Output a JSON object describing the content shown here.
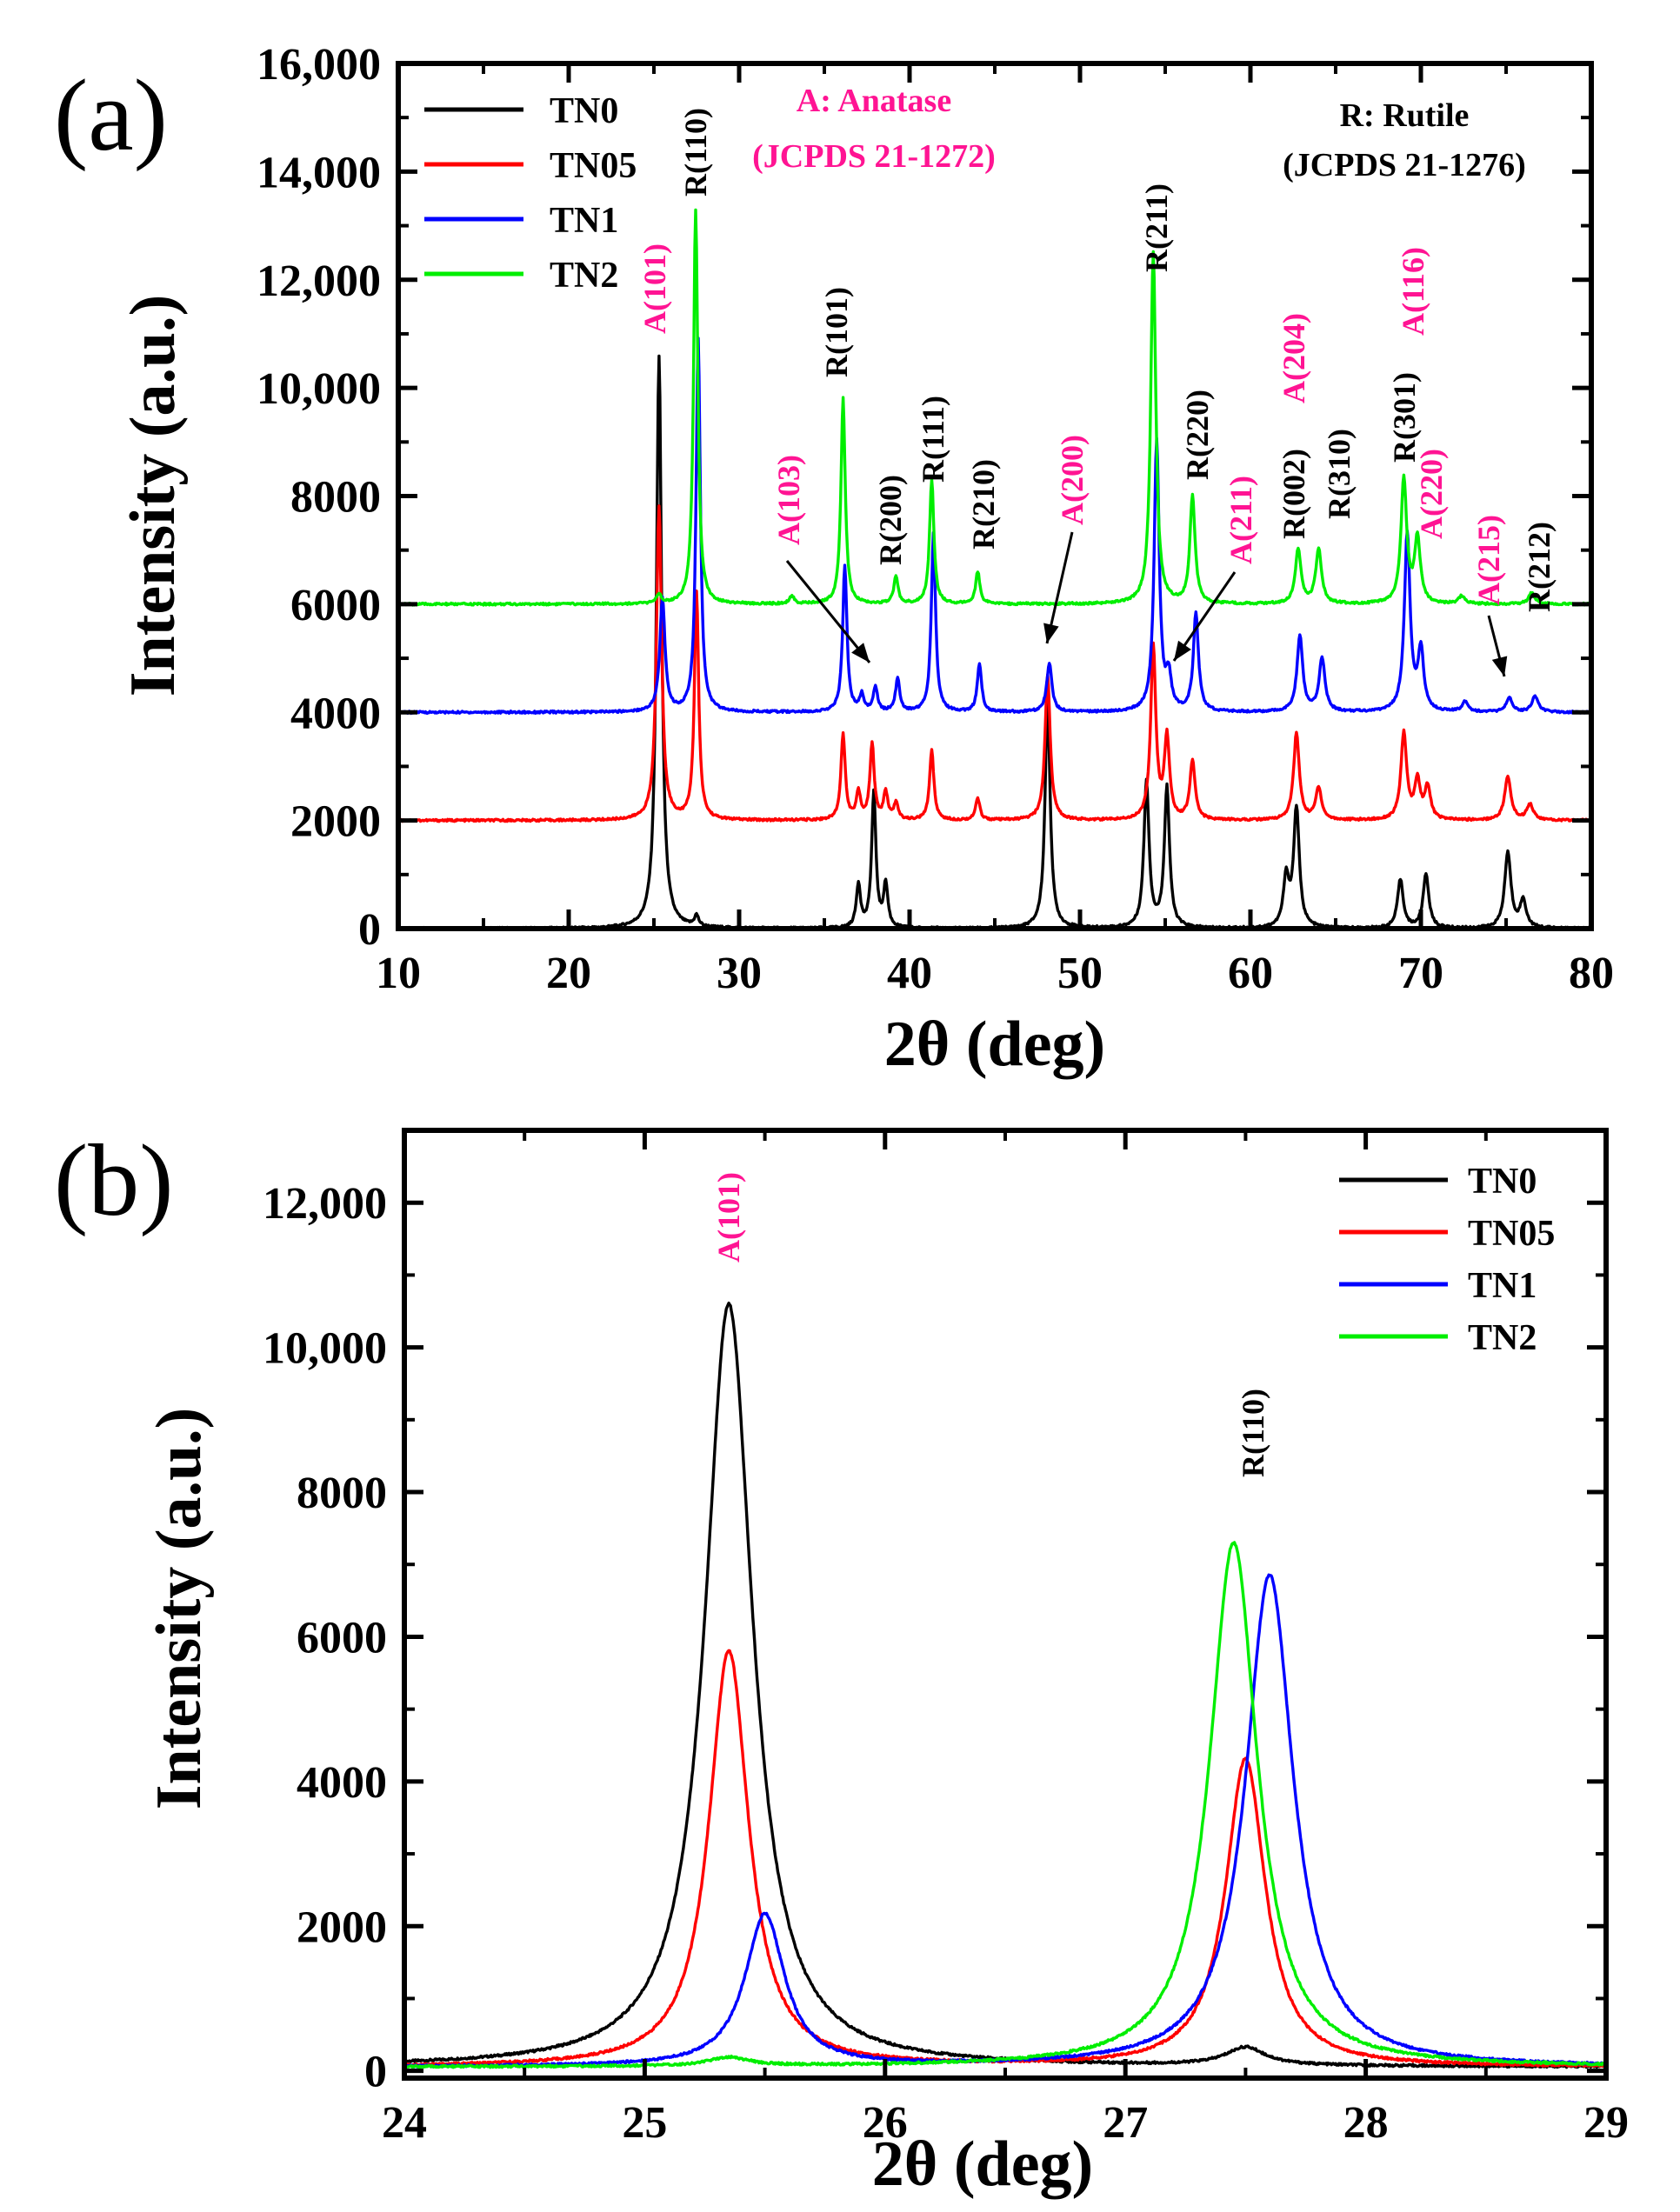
{
  "colors": {
    "TN0": "#000000",
    "TN05": "#ff0000",
    "TN1": "#0000ff",
    "TN2": "#00ee00",
    "anatase_label": "#ff1493",
    "rutile_label": "#000000"
  },
  "chart_data": [
    {
      "panel": "(a)",
      "type": "line",
      "xlabel": "2θ (deg)",
      "ylabel": "Intensity (a.u.)",
      "xlim": [
        10,
        80
      ],
      "ylim": [
        0,
        16000
      ],
      "xticks": [
        "10",
        "20",
        "30",
        "40",
        "50",
        "60",
        "70",
        "80"
      ],
      "yticks": [
        "0",
        "2000",
        "4000",
        "6000",
        "8000",
        "10,000",
        "12,000",
        "14,000",
        "16,000"
      ],
      "legend_position": "top-left",
      "series": [
        {
          "name": "TN0",
          "color": "#000000",
          "baseline": 0,
          "peaks": [
            [
              25.3,
              10600,
              0.18
            ],
            [
              27.5,
              200,
              0.15
            ],
            [
              37.0,
              800,
              0.15
            ],
            [
              37.9,
              2500,
              0.15
            ],
            [
              38.6,
              800,
              0.15
            ],
            [
              48.1,
              4200,
              0.18
            ],
            [
              53.9,
              2700,
              0.18
            ],
            [
              55.1,
              2600,
              0.18
            ],
            [
              62.1,
              900,
              0.2
            ],
            [
              62.7,
              2200,
              0.2
            ],
            [
              68.8,
              900,
              0.2
            ],
            [
              70.3,
              1000,
              0.2
            ],
            [
              75.1,
              1400,
              0.22
            ],
            [
              76.0,
              500,
              0.22
            ]
          ]
        },
        {
          "name": "TN05",
          "color": "#ff0000",
          "baseline": 2000,
          "peaks": [
            [
              25.3,
              5800,
              0.18
            ],
            [
              27.5,
              4200,
              0.15
            ],
            [
              36.1,
              1600,
              0.15
            ],
            [
              37.0,
              500,
              0.15
            ],
            [
              37.8,
              1400,
              0.15
            ],
            [
              38.6,
              500,
              0.15
            ],
            [
              39.2,
              300,
              0.15
            ],
            [
              41.3,
              1300,
              0.15
            ],
            [
              44.0,
              400,
              0.15
            ],
            [
              48.1,
              2700,
              0.18
            ],
            [
              54.3,
              3200,
              0.18
            ],
            [
              55.1,
              1500,
              0.18
            ],
            [
              56.6,
              1100,
              0.18
            ],
            [
              62.7,
              1600,
              0.2
            ],
            [
              64.0,
              600,
              0.2
            ],
            [
              69.0,
              1600,
              0.2
            ],
            [
              69.8,
              700,
              0.2
            ],
            [
              70.4,
              600,
              0.2
            ],
            [
              75.1,
              800,
              0.22
            ],
            [
              76.4,
              300,
              0.22
            ]
          ]
        },
        {
          "name": "TN1",
          "color": "#0000ff",
          "baseline": 4000,
          "peaks": [
            [
              25.5,
              2100,
              0.18
            ],
            [
              27.6,
              6900,
              0.15
            ],
            [
              36.2,
              2700,
              0.15
            ],
            [
              37.2,
              300,
              0.15
            ],
            [
              38.0,
              450,
              0.15
            ],
            [
              39.3,
              600,
              0.15
            ],
            [
              41.4,
              3300,
              0.15
            ],
            [
              44.1,
              900,
              0.15
            ],
            [
              48.2,
              900,
              0.18
            ],
            [
              54.5,
              5000,
              0.18
            ],
            [
              55.2,
              600,
              0.18
            ],
            [
              56.8,
              1800,
              0.18
            ],
            [
              62.9,
              1400,
              0.2
            ],
            [
              64.2,
              1000,
              0.2
            ],
            [
              69.2,
              3300,
              0.2
            ],
            [
              70.0,
              1100,
              0.2
            ],
            [
              72.6,
              200,
              0.2
            ],
            [
              75.2,
              250,
              0.22
            ],
            [
              76.7,
              300,
              0.22
            ]
          ]
        },
        {
          "name": "TN2",
          "color": "#00ee00",
          "baseline": 6000,
          "peaks": [
            [
              25.3,
              150,
              0.18
            ],
            [
              27.45,
              7300,
              0.15
            ],
            [
              33.1,
              150,
              0.15
            ],
            [
              36.1,
              3800,
              0.15
            ],
            [
              39.2,
              500,
              0.15
            ],
            [
              41.3,
              2300,
              0.15
            ],
            [
              44.0,
              600,
              0.15
            ],
            [
              54.3,
              6500,
              0.18
            ],
            [
              56.6,
              2000,
              0.18
            ],
            [
              62.8,
              1000,
              0.2
            ],
            [
              64.0,
              1000,
              0.2
            ],
            [
              69.0,
              2300,
              0.2
            ],
            [
              69.8,
              1200,
              0.2
            ],
            [
              72.4,
              150,
              0.2
            ],
            [
              76.5,
              200,
              0.22
            ]
          ]
        }
      ],
      "reference_labels": [
        {
          "text": "A: Anatase",
          "kind": "anatase"
        },
        {
          "text": "(JCPDS 21-1272)",
          "kind": "anatase"
        },
        {
          "text": "R: Rutile",
          "kind": "rutile"
        },
        {
          "text": "(JCPDS 21-1276)",
          "kind": "rutile"
        }
      ],
      "annotations": [
        {
          "text": "A(101)",
          "kind": "anatase",
          "x": 25.3
        },
        {
          "text": "R(110)",
          "kind": "rutile",
          "x": 27.5
        },
        {
          "text": "A(103)",
          "kind": "anatase",
          "x": 37.0
        },
        {
          "text": "R(101)",
          "kind": "rutile",
          "x": 36.1
        },
        {
          "text": "R(200)",
          "kind": "rutile",
          "x": 39.2
        },
        {
          "text": "R(111)",
          "kind": "rutile",
          "x": 41.3
        },
        {
          "text": "R(210)",
          "kind": "rutile",
          "x": 44.0
        },
        {
          "text": "A(200)",
          "kind": "anatase",
          "x": 48.1
        },
        {
          "text": "R(211)",
          "kind": "rutile",
          "x": 54.3
        },
        {
          "text": "R(220)",
          "kind": "rutile",
          "x": 56.6
        },
        {
          "text": "A(211)",
          "kind": "anatase",
          "x": 55.1
        },
        {
          "text": "R(002)",
          "kind": "rutile",
          "x": 62.7
        },
        {
          "text": "A(204)",
          "kind": "anatase",
          "x": 62.7
        },
        {
          "text": "R(310)",
          "kind": "rutile",
          "x": 64.0
        },
        {
          "text": "R(301)",
          "kind": "rutile",
          "x": 69.0
        },
        {
          "text": "A(116)",
          "kind": "anatase",
          "x": 68.8
        },
        {
          "text": "A(220)",
          "kind": "anatase",
          "x": 70.3
        },
        {
          "text": "A(215)",
          "kind": "anatase",
          "x": 75.1
        },
        {
          "text": "R(212)",
          "kind": "rutile",
          "x": 76.5
        }
      ]
    },
    {
      "panel": "(b)",
      "type": "line",
      "xlabel": "2θ (deg)",
      "ylabel": "Intensity (a.u.)",
      "xlim": [
        24,
        29
      ],
      "ylim": [
        -100,
        13000
      ],
      "xticks": [
        "24",
        "25",
        "26",
        "27",
        "28",
        "29"
      ],
      "yticks": [
        "0",
        "2000",
        "4000",
        "6000",
        "8000",
        "10,000",
        "12,000"
      ],
      "legend_position": "top-right",
      "series": [
        {
          "name": "TN0",
          "color": "#000000",
          "baseline": 50,
          "peaks": [
            [
              25.35,
              10550,
              0.12
            ],
            [
              27.5,
              250,
              0.1
            ]
          ]
        },
        {
          "name": "TN05",
          "color": "#ff0000",
          "baseline": 50,
          "peaks": [
            [
              25.35,
              5750,
              0.1
            ],
            [
              27.5,
              4250,
              0.1
            ]
          ]
        },
        {
          "name": "TN1",
          "color": "#0000ff",
          "baseline": 50,
          "peaks": [
            [
              25.5,
              2100,
              0.1
            ],
            [
              27.6,
              6800,
              0.12
            ]
          ]
        },
        {
          "name": "TN2",
          "color": "#00ee00",
          "baseline": 50,
          "peaks": [
            [
              25.35,
              120,
              0.1
            ],
            [
              27.45,
              7250,
              0.12
            ]
          ]
        }
      ],
      "annotations": [
        {
          "text": "A(101)",
          "kind": "anatase",
          "x": 25.35
        },
        {
          "text": "R(110)",
          "kind": "rutile",
          "x": 27.5
        }
      ]
    }
  ]
}
